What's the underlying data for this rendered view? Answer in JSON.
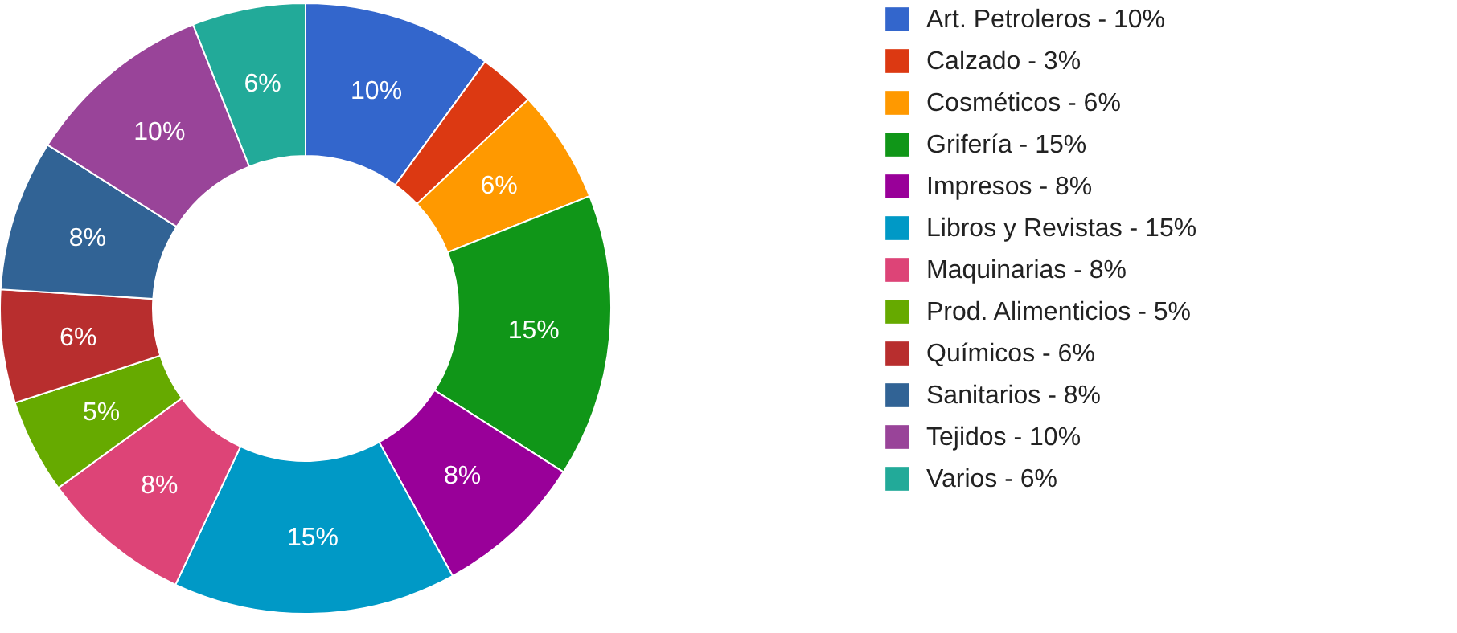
{
  "chart_data": {
    "type": "donut",
    "categories": [
      "Art. Petroleros - 10%",
      "Calzado - 3%",
      "Cosméticos - 6%",
      "Grifería - 15%",
      "Impresos - 8%",
      "Libros y Revistas - 15%",
      "Maquinarias - 8%",
      "Prod. Alimenticios - 5%",
      "Químicos - 6%",
      "Sanitarios - 8%",
      "Tejidos - 10%",
      "Varios - 6%"
    ],
    "values": [
      10,
      3,
      6,
      15,
      8,
      15,
      8,
      5,
      6,
      8,
      10,
      6
    ],
    "value_labels": [
      "10%",
      null,
      "6%",
      "15%",
      "8%",
      "15%",
      "8%",
      "5%",
      "6%",
      "8%",
      "10%",
      "6%"
    ],
    "colors": [
      "#3366cc",
      "#dc3912",
      "#ff9900",
      "#109618",
      "#990099",
      "#0099c6",
      "#dd4477",
      "#66aa00",
      "#b82e2e",
      "#316395",
      "#994499",
      "#22aa99"
    ],
    "legend": "top right"
  }
}
